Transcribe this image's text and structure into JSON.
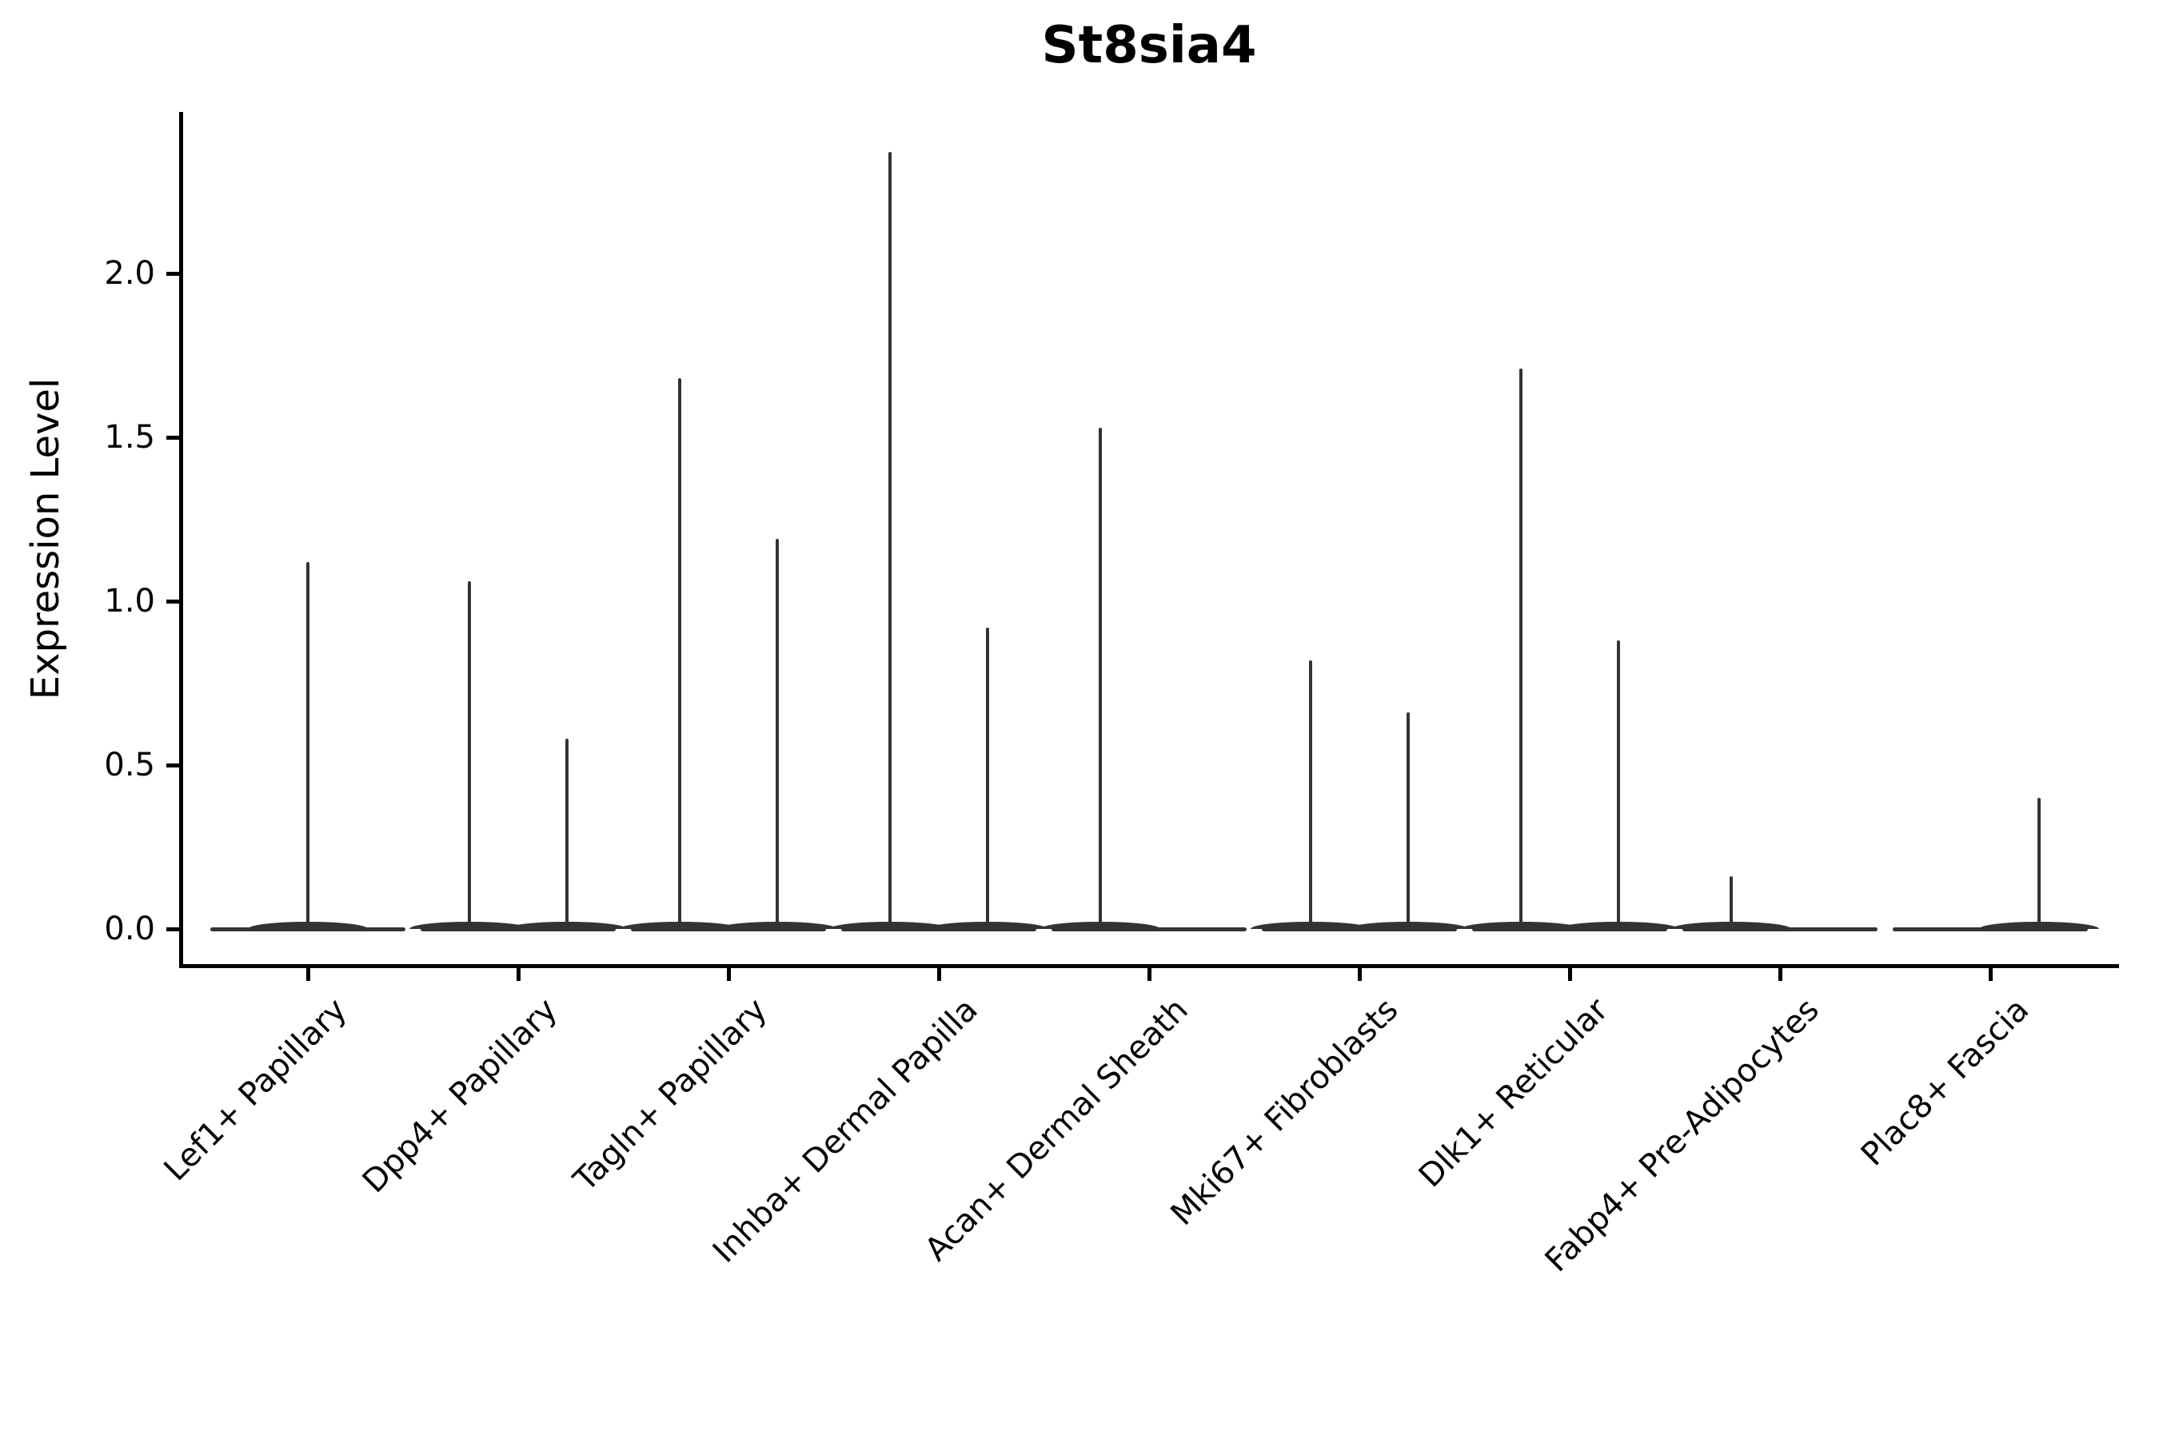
{
  "title": "St8sia4",
  "axes": {
    "y_label": "Expression Level",
    "x_label": "",
    "y_ticks": [
      {
        "label": "0.0",
        "value": 0.0
      },
      {
        "label": "0.5",
        "value": 0.5
      },
      {
        "label": "1.0",
        "value": 1.0
      },
      {
        "label": "1.5",
        "value": 1.5
      },
      {
        "label": "2.0",
        "value": 2.0
      }
    ]
  },
  "chart_data": {
    "type": "violin",
    "title": "St8sia4",
    "xlabel": "",
    "ylabel": "Expression Level",
    "ylim": [
      -0.11,
      2.49
    ],
    "y_tick_values": [
      0.0,
      0.5,
      1.0,
      1.5,
      2.0
    ],
    "grid": false,
    "legend_position": "none",
    "categories": [
      "Lef1+ Papillary",
      "Dpp4+ Papillary",
      "Tagln+ Papillary",
      "Inhba+ Dermal Papilla",
      "Acan+ Dermal Sheath",
      "Mki67+ Fibroblasts",
      "Dlk1+ Reticular",
      "Fabp4+ Pre-Adipocytes",
      "Plac8+ Fascia"
    ],
    "groups": [
      {
        "label": "Lef1+ Papillary",
        "violins": [
          {
            "slot": "full",
            "peak_expression": 1.12
          }
        ]
      },
      {
        "label": "Dpp4+ Papillary",
        "violins": [
          {
            "slot": "left",
            "peak_expression": 1.06
          },
          {
            "slot": "right",
            "peak_expression": 0.58
          }
        ]
      },
      {
        "label": "Tagln+ Papillary",
        "violins": [
          {
            "slot": "left",
            "peak_expression": 1.68
          },
          {
            "slot": "right",
            "peak_expression": 1.19
          }
        ]
      },
      {
        "label": "Inhba+ Dermal Papilla",
        "violins": [
          {
            "slot": "left",
            "peak_expression": 2.37
          },
          {
            "slot": "right",
            "peak_expression": 0.92
          }
        ]
      },
      {
        "label": "Acan+ Dermal Sheath",
        "violins": [
          {
            "slot": "left",
            "peak_expression": 1.53
          },
          {
            "slot": "right",
            "peak_expression": 0.0
          }
        ]
      },
      {
        "label": "Mki67+ Fibroblasts",
        "violins": [
          {
            "slot": "left",
            "peak_expression": 0.82
          },
          {
            "slot": "right",
            "peak_expression": 0.66
          }
        ]
      },
      {
        "label": "Dlk1+ Reticular",
        "violins": [
          {
            "slot": "left",
            "peak_expression": 1.71
          },
          {
            "slot": "right",
            "peak_expression": 0.88
          }
        ]
      },
      {
        "label": "Fabp4+ Pre-Adipocytes",
        "violins": [
          {
            "slot": "left",
            "peak_expression": 0.16
          },
          {
            "slot": "right",
            "peak_expression": 0.0
          }
        ]
      },
      {
        "label": "Plac8+ Fascia",
        "violins": [
          {
            "slot": "left",
            "peak_expression": 0.0
          },
          {
            "slot": "right",
            "peak_expression": 0.4
          }
        ]
      }
    ],
    "notes": "Single-cell expression violin plot; each distribution is concentrated at 0 with a thin density spike reaching the listed maximum expression value. Categories with one group show a single full-width centered violin; categories with two groups show two dodged violins."
  },
  "style": {
    "violin_color": "#333333",
    "axis_color": "#000000",
    "background_color": "#ffffff"
  }
}
